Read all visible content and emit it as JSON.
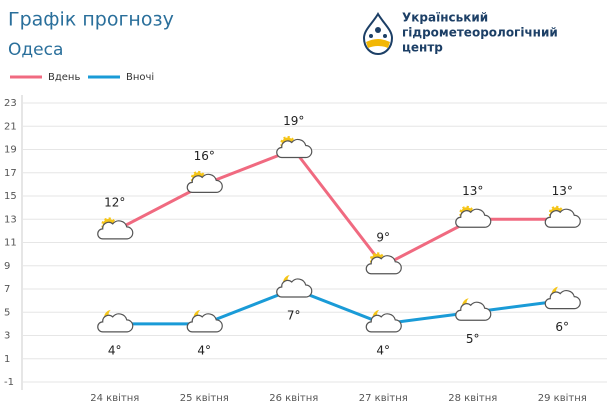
{
  "header": {
    "title": "Графік прогнозу",
    "city": "Одеса",
    "org": [
      "Український",
      "гідрометеорологічний",
      "центр"
    ]
  },
  "chart_data": {
    "type": "line",
    "categories": [
      "24 квітня",
      "25 квітня",
      "26 квітня",
      "27 квітня",
      "28 квітня",
      "29 квітня"
    ],
    "series": [
      {
        "name": "Вдень",
        "color": "#f06a80",
        "values": [
          12,
          16,
          19,
          9,
          13,
          13
        ],
        "value_labels": [
          "12°",
          "16°",
          "19°",
          "9°",
          "13°",
          "13°"
        ]
      },
      {
        "name": "Вночі",
        "color": "#1a9bd7",
        "values": [
          4,
          4,
          7,
          4,
          5,
          6
        ],
        "value_labels": [
          "4°",
          "4°",
          "7°",
          "4°",
          "5°",
          "6°"
        ]
      }
    ],
    "ylim": [
      -1,
      23
    ],
    "yticks": [
      -1,
      1,
      3,
      5,
      7,
      9,
      11,
      13,
      15,
      17,
      19,
      21,
      23
    ],
    "grid": true
  }
}
